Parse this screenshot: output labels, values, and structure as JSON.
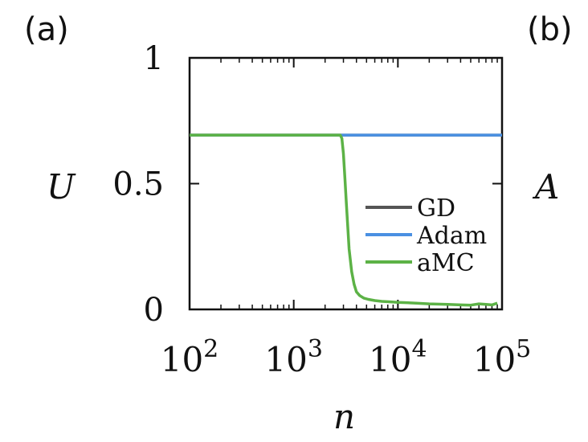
{
  "panel_labels": {
    "left": "(a)",
    "right": "(b)"
  },
  "right_axis_label": "A",
  "chart_data": {
    "type": "line",
    "xlabel": "n",
    "ylabel": "U",
    "xscale": "log",
    "xlim": [
      100,
      100000
    ],
    "ylim": [
      0,
      1
    ],
    "xticks": [
      {
        "value": 100,
        "base": "10",
        "exp": "2"
      },
      {
        "value": 1000,
        "base": "10",
        "exp": "3"
      },
      {
        "value": 10000,
        "base": "10",
        "exp": "4"
      },
      {
        "value": 100000,
        "base": "10",
        "exp": "5"
      }
    ],
    "yticks": [
      {
        "value": 0,
        "label": "0"
      },
      {
        "value": 0.5,
        "label": "0.5"
      },
      {
        "value": 1,
        "label": "1"
      }
    ],
    "grid": false,
    "legend": "center-right",
    "series": [
      {
        "name": "GD",
        "color": "#555555",
        "x": [
          100,
          100000
        ],
        "y": [
          0.693,
          0.693
        ]
      },
      {
        "name": "Adam",
        "color": "#4a90e2",
        "x": [
          100,
          100000
        ],
        "y": [
          0.693,
          0.693
        ]
      },
      {
        "name": "aMC",
        "color": "#5cb246",
        "x": [
          100,
          2800,
          2900,
          3000,
          3100,
          3200,
          3300,
          3400,
          3600,
          3800,
          4000,
          4300,
          4700,
          5200,
          6000,
          7000,
          8500,
          10000,
          15000,
          20000,
          30000,
          40000,
          50000,
          60000,
          70000,
          80000,
          90000
        ],
        "y": [
          0.693,
          0.693,
          0.68,
          0.62,
          0.52,
          0.42,
          0.33,
          0.24,
          0.15,
          0.1,
          0.07,
          0.055,
          0.045,
          0.04,
          0.035,
          0.032,
          0.03,
          0.028,
          0.025,
          0.022,
          0.02,
          0.018,
          0.017,
          0.022,
          0.02,
          0.018,
          0.025
        ]
      }
    ]
  }
}
